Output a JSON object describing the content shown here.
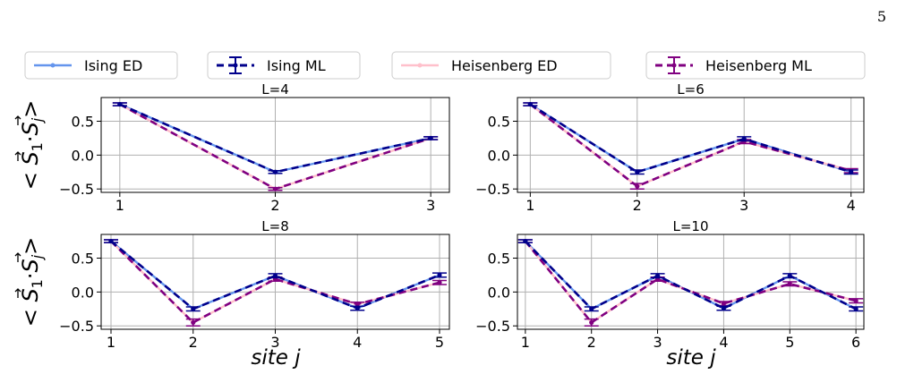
{
  "page_number": "5",
  "chart_data": {
    "type": "line",
    "legend": {
      "placement": "top",
      "entries": [
        {
          "label": "Ising ED",
          "color": "#6495ED",
          "style": "solid"
        },
        {
          "label": "Ising ML",
          "color": "#00008B",
          "style": "dashed-errorbar"
        },
        {
          "label": "Heisenberg ED",
          "color": "#FFC0CB",
          "style": "solid"
        },
        {
          "label": "Heisenberg ML",
          "color": "#800080",
          "style": "dashed-errorbar"
        }
      ]
    },
    "ylabel_rows": [
      {
        "angle_open": "<",
        "s1": "S",
        "s1_sub": "1",
        "dot": "·",
        "sj": "S",
        "sj_sub": "j",
        "angle_close": ">"
      },
      {
        "angle_open": "<",
        "s1": "S",
        "s1_sub": "1",
        "dot": "·",
        "sj": "S",
        "sj_sub": "j",
        "angle_close": ">"
      }
    ],
    "xlabel_cols": [
      {
        "word": "site",
        "var": "j"
      },
      {
        "word": "site",
        "var": "j"
      }
    ],
    "ylim": [
      -0.55,
      0.85
    ],
    "yticks": [
      {
        "v": 0.5,
        "label": "0.5"
      },
      {
        "v": 0.0,
        "label": "0.0"
      },
      {
        "v": -0.5,
        "label": "−0.5"
      }
    ],
    "grid": true,
    "panels": [
      {
        "title": "L=4",
        "x": [
          1,
          2,
          3
        ],
        "xtick_labels": [
          "1",
          "2",
          "3"
        ],
        "series": [
          {
            "name": "Ising ED",
            "values": [
              0.75,
              -0.25,
              0.25
            ]
          },
          {
            "name": "Ising ML",
            "values": [
              0.75,
              -0.25,
              0.25
            ],
            "errors": [
              0.02,
              0.02,
              0.02
            ]
          },
          {
            "name": "Heisenberg ED",
            "values": [
              0.75,
              -0.5,
              0.25
            ]
          },
          {
            "name": "Heisenberg ML",
            "values": [
              0.75,
              -0.5,
              0.25
            ],
            "errors": [
              0.02,
              0.02,
              0.02
            ]
          }
        ]
      },
      {
        "title": "L=6",
        "x": [
          1,
          2,
          3,
          4
        ],
        "xtick_labels": [
          "1",
          "2",
          "3",
          "4"
        ],
        "series": [
          {
            "name": "Ising ED",
            "values": [
              0.75,
              -0.25,
              0.24,
              -0.25
            ]
          },
          {
            "name": "Ising ML",
            "values": [
              0.75,
              -0.25,
              0.24,
              -0.25
            ],
            "errors": [
              0.02,
              0.03,
              0.03,
              0.03
            ]
          },
          {
            "name": "Heisenberg ED",
            "values": [
              0.75,
              -0.46,
              0.2,
              -0.23
            ]
          },
          {
            "name": "Heisenberg ML",
            "values": [
              0.75,
              -0.46,
              0.2,
              -0.23
            ],
            "errors": [
              0.02,
              0.04,
              0.03,
              0.03
            ]
          }
        ]
      },
      {
        "title": "L=8",
        "x": [
          1,
          2,
          3,
          4,
          5
        ],
        "xtick_labels": [
          "1",
          "2",
          "3",
          "4",
          "5"
        ],
        "series": [
          {
            "name": "Ising ED",
            "values": [
              0.75,
              -0.25,
              0.24,
              -0.24,
              0.25
            ]
          },
          {
            "name": "Ising ML",
            "values": [
              0.75,
              -0.25,
              0.24,
              -0.24,
              0.25
            ],
            "errors": [
              0.02,
              0.03,
              0.03,
              0.03,
              0.03
            ]
          },
          {
            "name": "Heisenberg ED",
            "values": [
              0.75,
              -0.45,
              0.19,
              -0.18,
              0.14
            ]
          },
          {
            "name": "Heisenberg ML",
            "values": [
              0.75,
              -0.45,
              0.19,
              -0.18,
              0.14
            ],
            "errors": [
              0.02,
              0.05,
              0.03,
              0.03,
              0.03
            ]
          }
        ]
      },
      {
        "title": "L=10",
        "x": [
          1,
          2,
          3,
          4,
          5,
          6
        ],
        "xtick_labels": [
          "1",
          "2",
          "3",
          "4",
          "5",
          "6"
        ],
        "series": [
          {
            "name": "Ising ED",
            "values": [
              0.75,
              -0.25,
              0.24,
              -0.24,
              0.24,
              -0.25
            ]
          },
          {
            "name": "Ising ML",
            "values": [
              0.75,
              -0.25,
              0.24,
              -0.24,
              0.24,
              -0.25
            ],
            "errors": [
              0.02,
              0.03,
              0.03,
              0.03,
              0.03,
              0.03
            ]
          },
          {
            "name": "Heisenberg ED",
            "values": [
              0.75,
              -0.45,
              0.19,
              -0.17,
              0.12,
              -0.13
            ]
          },
          {
            "name": "Heisenberg ML",
            "values": [
              0.75,
              -0.45,
              0.19,
              -0.17,
              0.12,
              -0.13
            ],
            "errors": [
              0.02,
              0.05,
              0.03,
              0.03,
              0.03,
              0.03
            ]
          }
        ]
      }
    ]
  }
}
